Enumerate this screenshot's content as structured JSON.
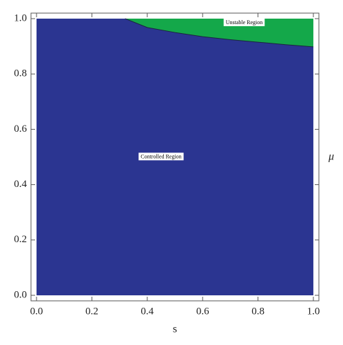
{
  "chart_data": {
    "type": "region",
    "x_label": "s",
    "y_label": "μ",
    "xlim": [
      -0.02,
      1.02
    ],
    "ylim": [
      -0.02,
      1.02
    ],
    "xticks": [
      {
        "value": 0,
        "label": "0.0"
      },
      0.2,
      0.4,
      0.6,
      0.8,
      {
        "value": 1,
        "label": "1.0"
      }
    ],
    "yticks": [
      {
        "value": 0,
        "label": "0.0"
      },
      0.2,
      0.4,
      0.6,
      0.8,
      {
        "value": 1,
        "label": "1.0"
      }
    ],
    "x_range": [
      0,
      1
    ],
    "y_range": [
      0,
      1
    ],
    "boundary": {
      "x": [
        0.32,
        0.4,
        0.5,
        0.6,
        0.7,
        0.8,
        0.9,
        1.0
      ],
      "y": [
        1.0,
        0.968,
        0.95,
        0.935,
        0.924,
        0.915,
        0.906,
        0.898
      ]
    },
    "regions": [
      {
        "name": "Controlled Region",
        "color": "#2b3591"
      },
      {
        "name": "Unstable Region",
        "color": "#14a84a"
      }
    ]
  }
}
